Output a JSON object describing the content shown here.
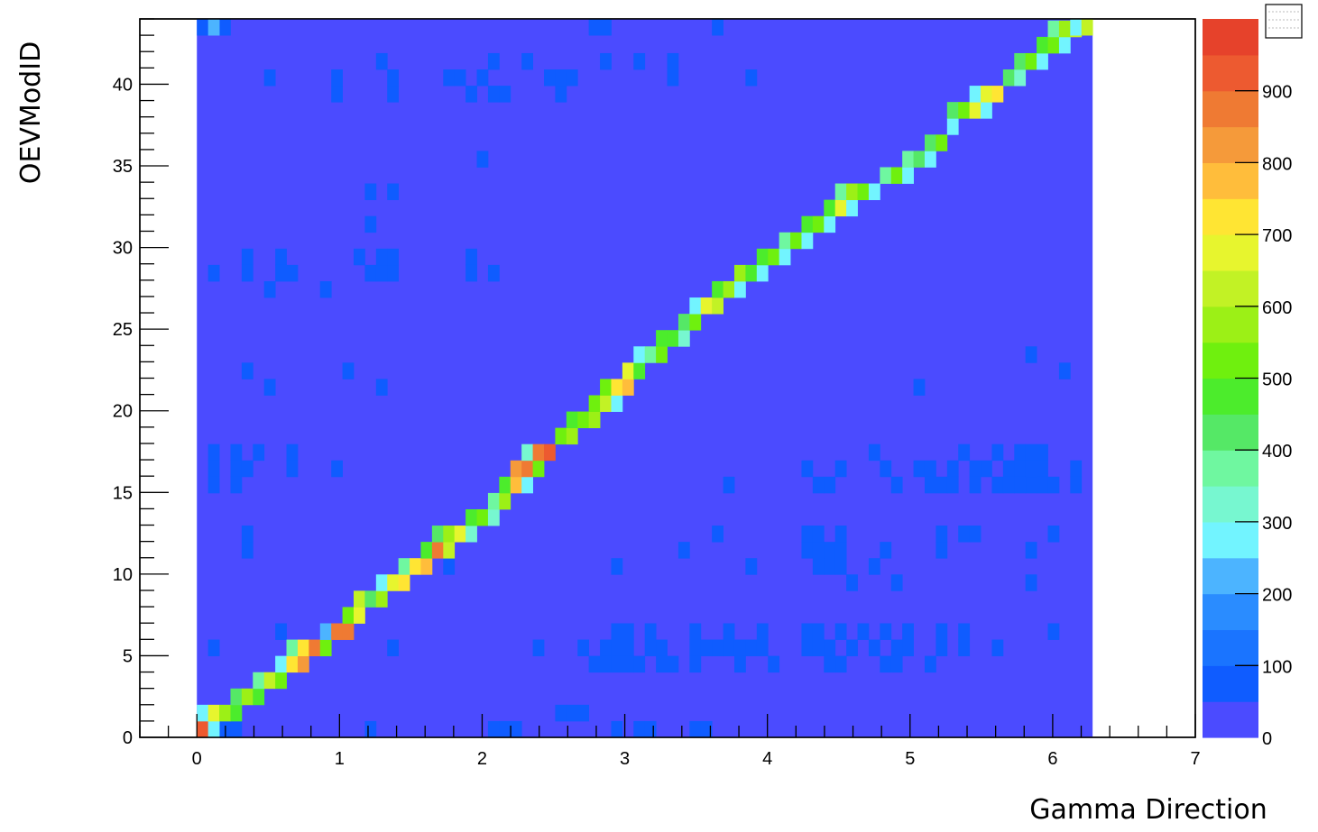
{
  "chart_data": {
    "type": "heatmap",
    "title": "",
    "xlabel": "Gamma Direction",
    "ylabel": "OEVModID",
    "xlim": [
      -0.4,
      7
    ],
    "ylim": [
      0,
      44
    ],
    "x_ticks": [
      0,
      1,
      2,
      3,
      4,
      5,
      6,
      7
    ],
    "y_ticks": [
      0,
      5,
      10,
      15,
      20,
      25,
      30,
      35,
      40
    ],
    "x_bin_width": 0.0785,
    "x_bin_count": 80,
    "x_first_bin": 0,
    "y_bin_count": 44,
    "z_ticks": [
      100,
      200,
      300,
      400,
      500,
      600,
      700,
      800,
      900
    ],
    "z_tick_labels": [
      "0",
      "100",
      "200",
      "300",
      "400",
      "500",
      "600",
      "700",
      "800",
      "900"
    ],
    "zlim": [
      0,
      1000
    ],
    "palette": [
      "#4b4bff",
      "#1f4bff",
      "#0f5cff",
      "#1a74ff",
      "#2a8cff",
      "#4cb4ff",
      "#72f4ff",
      "#77f7d0",
      "#6ff7a0",
      "#55e866",
      "#4cec2c",
      "#6ff00e",
      "#9cf016",
      "#c2f225",
      "#e7f52e",
      "#ffe533",
      "#ffbd3b",
      "#f59a3a",
      "#ef7a33",
      "#ed5a30",
      "#e6422b"
    ],
    "background_value": 20,
    "diagonal_bins": [
      [
        0,
        0,
        950
      ],
      [
        1,
        0,
        280
      ],
      [
        0,
        1,
        300
      ],
      [
        1,
        1,
        720
      ],
      [
        2,
        1,
        610
      ],
      [
        3,
        1,
        520
      ],
      [
        3,
        2,
        430
      ],
      [
        4,
        2,
        620
      ],
      [
        5,
        2,
        480
      ],
      [
        5,
        3,
        400
      ],
      [
        6,
        3,
        660
      ],
      [
        7,
        3,
        560
      ],
      [
        7,
        4,
        280
      ],
      [
        8,
        4,
        760
      ],
      [
        9,
        4,
        850
      ],
      [
        8,
        5,
        420
      ],
      [
        9,
        5,
        750
      ],
      [
        10,
        5,
        890
      ],
      [
        11,
        5,
        560
      ],
      [
        11,
        6,
        270
      ],
      [
        12,
        6,
        880
      ],
      [
        13,
        6,
        910
      ],
      [
        13,
        7,
        560
      ],
      [
        14,
        7,
        720
      ],
      [
        14,
        8,
        640
      ],
      [
        15,
        8,
        460
      ],
      [
        16,
        8,
        580
      ],
      [
        16,
        9,
        320
      ],
      [
        17,
        9,
        700
      ],
      [
        18,
        9,
        760
      ],
      [
        18,
        10,
        400
      ],
      [
        19,
        10,
        730
      ],
      [
        20,
        10,
        820
      ],
      [
        20,
        11,
        500
      ],
      [
        21,
        11,
        880
      ],
      [
        22,
        11,
        650
      ],
      [
        21,
        12,
        450
      ],
      [
        22,
        12,
        620
      ],
      [
        23,
        12,
        690
      ],
      [
        24,
        12,
        330
      ],
      [
        24,
        13,
        520
      ],
      [
        25,
        13,
        560
      ],
      [
        26,
        13,
        330
      ],
      [
        26,
        14,
        420
      ],
      [
        27,
        14,
        610
      ],
      [
        27,
        15,
        480
      ],
      [
        28,
        15,
        790
      ],
      [
        29,
        15,
        320
      ],
      [
        28,
        16,
        860
      ],
      [
        29,
        16,
        880
      ],
      [
        30,
        16,
        560
      ],
      [
        29,
        17,
        330
      ],
      [
        30,
        17,
        900
      ],
      [
        31,
        17,
        940
      ],
      [
        32,
        18,
        540
      ],
      [
        33,
        18,
        610
      ],
      [
        33,
        19,
        480
      ],
      [
        34,
        19,
        550
      ],
      [
        35,
        19,
        610
      ],
      [
        35,
        20,
        560
      ],
      [
        36,
        20,
        660
      ],
      [
        37,
        20,
        300
      ],
      [
        36,
        21,
        530
      ],
      [
        37,
        21,
        760
      ],
      [
        38,
        21,
        820
      ],
      [
        38,
        22,
        680
      ],
      [
        39,
        22,
        500
      ],
      [
        39,
        23,
        300
      ],
      [
        40,
        23,
        420
      ],
      [
        41,
        23,
        550
      ],
      [
        41,
        24,
        500
      ],
      [
        42,
        24,
        480
      ],
      [
        43,
        24,
        350
      ],
      [
        43,
        25,
        460
      ],
      [
        44,
        25,
        530
      ],
      [
        44,
        26,
        300
      ],
      [
        45,
        26,
        720
      ],
      [
        46,
        26,
        660
      ],
      [
        46,
        27,
        520
      ],
      [
        47,
        27,
        590
      ],
      [
        48,
        27,
        300
      ],
      [
        48,
        28,
        580
      ],
      [
        49,
        28,
        480
      ],
      [
        50,
        28,
        300
      ],
      [
        50,
        29,
        480
      ],
      [
        51,
        29,
        530
      ],
      [
        52,
        29,
        300
      ],
      [
        52,
        30,
        420
      ],
      [
        53,
        30,
        550
      ],
      [
        54,
        30,
        300
      ],
      [
        54,
        31,
        480
      ],
      [
        55,
        31,
        560
      ],
      [
        56,
        31,
        300
      ],
      [
        56,
        32,
        480
      ],
      [
        57,
        32,
        720
      ],
      [
        58,
        32,
        300
      ],
      [
        57,
        33,
        420
      ],
      [
        58,
        33,
        610
      ],
      [
        59,
        33,
        540
      ],
      [
        60,
        33,
        300
      ],
      [
        61,
        34,
        420
      ],
      [
        62,
        34,
        560
      ],
      [
        63,
        34,
        300
      ],
      [
        63,
        35,
        420
      ],
      [
        64,
        35,
        460
      ],
      [
        65,
        35,
        300
      ],
      [
        65,
        36,
        450
      ],
      [
        66,
        36,
        530
      ],
      [
        67,
        37,
        300
      ],
      [
        67,
        38,
        430
      ],
      [
        68,
        38,
        560
      ],
      [
        69,
        38,
        700
      ],
      [
        70,
        38,
        300
      ],
      [
        69,
        39,
        300
      ],
      [
        70,
        39,
        700
      ],
      [
        71,
        39,
        730
      ],
      [
        72,
        40,
        460
      ],
      [
        73,
        40,
        330
      ],
      [
        73,
        41,
        460
      ],
      [
        74,
        41,
        560
      ],
      [
        75,
        41,
        300
      ],
      [
        75,
        42,
        480
      ],
      [
        76,
        42,
        560
      ],
      [
        77,
        42,
        300
      ],
      [
        76,
        43,
        420
      ],
      [
        77,
        43,
        600
      ],
      [
        78,
        43,
        660
      ],
      [
        78,
        44,
        300
      ],
      [
        79,
        44,
        640
      ],
      [
        80,
        44,
        940
      ],
      [
        81,
        44,
        300
      ],
      [
        81,
        0,
        260
      ],
      [
        80,
        0,
        150
      ],
      [
        1,
        44,
        260
      ]
    ],
    "sparse_bins": [
      [
        0,
        44,
        120
      ],
      [
        2,
        44,
        100
      ],
      [
        35,
        44,
        100
      ],
      [
        36,
        44,
        100
      ],
      [
        46,
        44,
        100
      ],
      [
        6,
        40,
        100
      ],
      [
        12,
        40,
        100
      ],
      [
        16,
        41,
        100
      ],
      [
        17,
        40,
        100
      ],
      [
        22,
        40,
        100
      ],
      [
        23,
        40,
        100
      ],
      [
        25,
        40,
        100
      ],
      [
        26,
        41,
        100
      ],
      [
        29,
        41,
        100
      ],
      [
        31,
        40,
        100
      ],
      [
        32,
        40,
        100
      ],
      [
        33,
        40,
        100
      ],
      [
        36,
        41,
        100
      ],
      [
        39,
        41,
        100
      ],
      [
        42,
        41,
        100
      ],
      [
        42,
        40,
        100
      ],
      [
        49,
        40,
        100
      ],
      [
        17,
        39,
        100
      ],
      [
        12,
        39,
        100
      ],
      [
        24,
        39,
        100
      ],
      [
        26,
        39,
        100
      ],
      [
        32,
        39,
        100
      ],
      [
        27,
        39,
        100
      ],
      [
        25,
        35,
        100
      ],
      [
        15,
        33,
        100
      ],
      [
        17,
        33,
        100
      ],
      [
        15,
        31,
        100
      ],
      [
        1,
        28,
        100
      ],
      [
        4,
        29,
        100
      ],
      [
        4,
        28,
        100
      ],
      [
        7,
        29,
        100
      ],
      [
        7,
        28,
        100
      ],
      [
        6,
        27,
        100
      ],
      [
        8,
        28,
        100
      ],
      [
        11,
        27,
        100
      ],
      [
        14,
        29,
        100
      ],
      [
        15,
        28,
        100
      ],
      [
        16,
        28,
        100
      ],
      [
        17,
        28,
        100
      ],
      [
        17,
        29,
        100
      ],
      [
        16,
        29,
        100
      ],
      [
        24,
        29,
        100
      ],
      [
        24,
        28,
        100
      ],
      [
        26,
        28,
        100
      ],
      [
        81,
        27,
        100
      ],
      [
        4,
        22,
        100
      ],
      [
        6,
        21,
        100
      ],
      [
        13,
        22,
        100
      ],
      [
        16,
        21,
        100
      ],
      [
        74,
        23,
        100
      ],
      [
        77,
        22,
        100
      ],
      [
        64,
        21,
        100
      ],
      [
        1,
        17,
        100
      ],
      [
        1,
        16,
        100
      ],
      [
        1,
        15,
        100
      ],
      [
        3,
        17,
        100
      ],
      [
        3,
        16,
        100
      ],
      [
        4,
        16,
        100
      ],
      [
        5,
        17,
        100
      ],
      [
        3,
        15,
        100
      ],
      [
        8,
        17,
        100
      ],
      [
        8,
        16,
        100
      ],
      [
        12,
        16,
        100
      ],
      [
        54,
        16,
        100
      ],
      [
        55,
        15,
        100
      ],
      [
        56,
        15,
        100
      ],
      [
        57,
        16,
        100
      ],
      [
        60,
        17,
        100
      ],
      [
        61,
        16,
        100
      ],
      [
        62,
        15,
        100
      ],
      [
        64,
        16,
        100
      ],
      [
        65,
        16,
        100
      ],
      [
        66,
        15,
        100
      ],
      [
        67,
        16,
        100
      ],
      [
        67,
        15,
        100
      ],
      [
        68,
        17,
        100
      ],
      [
        69,
        16,
        100
      ],
      [
        69,
        15,
        100
      ],
      [
        70,
        16,
        100
      ],
      [
        71,
        17,
        100
      ],
      [
        72,
        16,
        100
      ],
      [
        73,
        17,
        100
      ],
      [
        73,
        16,
        100
      ],
      [
        74,
        17,
        100
      ],
      [
        75,
        17,
        100
      ],
      [
        75,
        16,
        100
      ],
      [
        74,
        15,
        100
      ],
      [
        73,
        15,
        100
      ],
      [
        75,
        15,
        100
      ],
      [
        76,
        15,
        100
      ],
      [
        78,
        16,
        100
      ],
      [
        78,
        15,
        100
      ],
      [
        71,
        15,
        100
      ],
      [
        72,
        15,
        100
      ],
      [
        74,
        16,
        100
      ],
      [
        65,
        15,
        100
      ],
      [
        47,
        15,
        100
      ],
      [
        4,
        12,
        100
      ],
      [
        4,
        11,
        100
      ],
      [
        43,
        11,
        100
      ],
      [
        46,
        12,
        100
      ],
      [
        54,
        12,
        100
      ],
      [
        54,
        11,
        100
      ],
      [
        55,
        12,
        100
      ],
      [
        55,
        11,
        100
      ],
      [
        56,
        11,
        100
      ],
      [
        56,
        10,
        100
      ],
      [
        55,
        10,
        100
      ],
      [
        57,
        11,
        100
      ],
      [
        57,
        10,
        100
      ],
      [
        57,
        12,
        100
      ],
      [
        60,
        10,
        100
      ],
      [
        61,
        11,
        100
      ],
      [
        66,
        12,
        100
      ],
      [
        66,
        11,
        100
      ],
      [
        68,
        12,
        100
      ],
      [
        69,
        12,
        100
      ],
      [
        74,
        11,
        100
      ],
      [
        76,
        12,
        100
      ],
      [
        37,
        10,
        100
      ],
      [
        49,
        10,
        100
      ],
      [
        58,
        9,
        100
      ],
      [
        62,
        9,
        100
      ],
      [
        74,
        9,
        100
      ],
      [
        22,
        10,
        100
      ],
      [
        1,
        5,
        100
      ],
      [
        7,
        6,
        100
      ],
      [
        17,
        5,
        100
      ],
      [
        30,
        5,
        100
      ],
      [
        34,
        5,
        100
      ],
      [
        35,
        4,
        100
      ],
      [
        36,
        5,
        100
      ],
      [
        37,
        6,
        100
      ],
      [
        37,
        5,
        100
      ],
      [
        38,
        6,
        100
      ],
      [
        38,
        5,
        100
      ],
      [
        37,
        4,
        100
      ],
      [
        38,
        4,
        100
      ],
      [
        36,
        4,
        100
      ],
      [
        39,
        4,
        100
      ],
      [
        40,
        5,
        100
      ],
      [
        40,
        6,
        100
      ],
      [
        41,
        5,
        100
      ],
      [
        41,
        4,
        100
      ],
      [
        42,
        4,
        100
      ],
      [
        44,
        6,
        100
      ],
      [
        44,
        5,
        100
      ],
      [
        44,
        4,
        100
      ],
      [
        45,
        5,
        100
      ],
      [
        46,
        5,
        100
      ],
      [
        47,
        6,
        100
      ],
      [
        47,
        5,
        100
      ],
      [
        48,
        5,
        100
      ],
      [
        48,
        4,
        100
      ],
      [
        49,
        5,
        100
      ],
      [
        50,
        6,
        100
      ],
      [
        50,
        5,
        100
      ],
      [
        51,
        4,
        100
      ],
      [
        54,
        6,
        100
      ],
      [
        54,
        5,
        100
      ],
      [
        55,
        6,
        100
      ],
      [
        55,
        5,
        100
      ],
      [
        56,
        5,
        100
      ],
      [
        57,
        4,
        100
      ],
      [
        57,
        6,
        100
      ],
      [
        58,
        5,
        100
      ],
      [
        59,
        6,
        100
      ],
      [
        60,
        5,
        100
      ],
      [
        61,
        6,
        100
      ],
      [
        61,
        4,
        100
      ],
      [
        62,
        5,
        100
      ],
      [
        62,
        4,
        100
      ],
      [
        63,
        6,
        100
      ],
      [
        63,
        5,
        100
      ],
      [
        65,
        4,
        100
      ],
      [
        66,
        6,
        100
      ],
      [
        66,
        5,
        100
      ],
      [
        68,
        5,
        100
      ],
      [
        68,
        6,
        100
      ],
      [
        71,
        5,
        100
      ],
      [
        76,
        6,
        100
      ],
      [
        56,
        4,
        100
      ],
      [
        32,
        1,
        100
      ],
      [
        33,
        1,
        100
      ],
      [
        34,
        1,
        100
      ],
      [
        26,
        0,
        100
      ],
      [
        27,
        0,
        100
      ],
      [
        28,
        0,
        100
      ],
      [
        37,
        0,
        100
      ],
      [
        39,
        0,
        100
      ],
      [
        40,
        0,
        100
      ],
      [
        44,
        0,
        100
      ],
      [
        45,
        0,
        100
      ],
      [
        15,
        0,
        100
      ],
      [
        2,
        0,
        100
      ],
      [
        3,
        0,
        100
      ]
    ]
  }
}
